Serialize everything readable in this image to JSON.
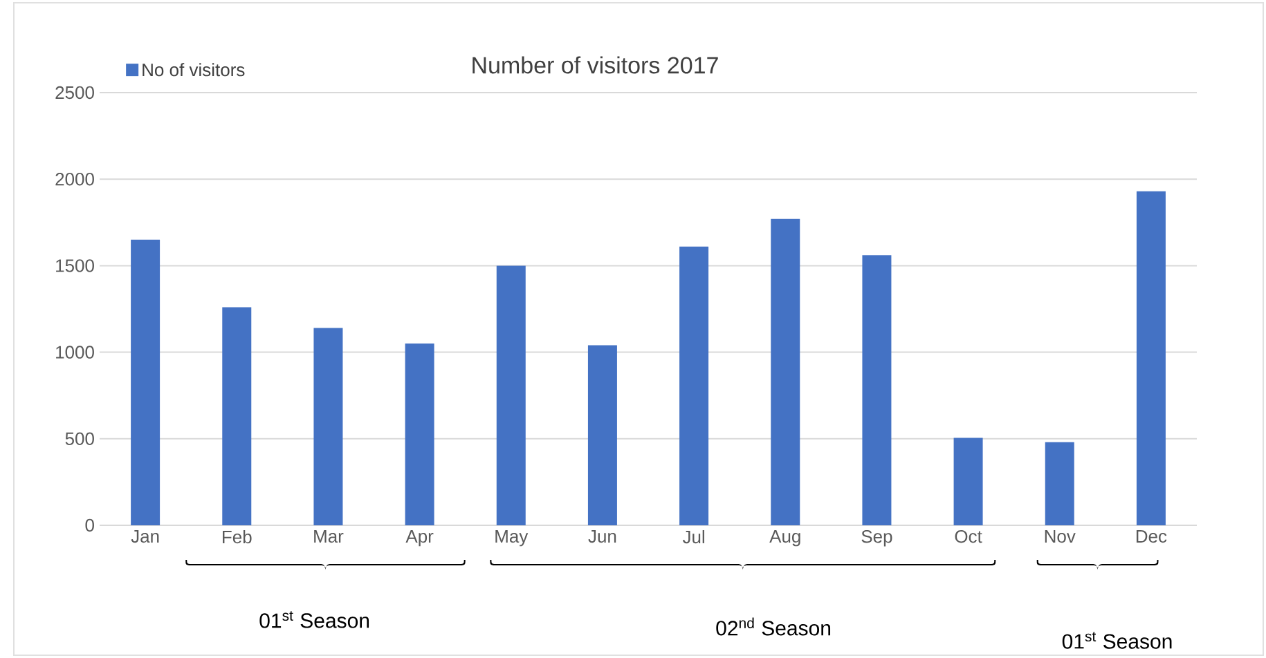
{
  "chart_data": {
    "type": "bar",
    "title": "Number of visitors 2017",
    "categories": [
      "Jan",
      "Feb",
      "Mar",
      "Apr",
      "May",
      "Jun",
      "Jul",
      "Aug",
      "Sep",
      "Oct",
      "Nov",
      "Dec"
    ],
    "series": [
      {
        "name": "No of visitors",
        "color": "#4472c4",
        "values": [
          1650,
          1260,
          1140,
          1050,
          1500,
          1040,
          1610,
          1770,
          1560,
          505,
          480,
          1930
        ]
      }
    ],
    "ylim": [
      0,
      2500
    ],
    "yticks": [
      0,
      500,
      1000,
      1500,
      2000,
      2500
    ],
    "grid": "y",
    "legend": "top left",
    "annotations": [
      "01$^{st}$ Season",
      "02$^{nd}$ Season",
      "01$^{st}$ Season"
    ]
  }
}
